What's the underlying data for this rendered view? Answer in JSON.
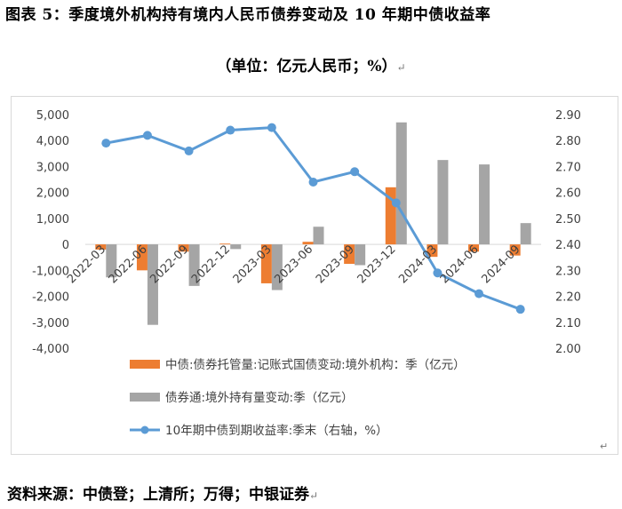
{
  "title": "图表 5：季度境外机构持有境内人民币债券变动及 10 年期中债收益率",
  "subtitle": "（单位：亿元人民币；%）",
  "subtitle_mark": "↵",
  "legend_mark": "↵",
  "source": "资料来源：中债登；上清所；万得；中银证券",
  "source_mark": "↵",
  "colors": {
    "orange": "#ED7D31",
    "gray": "#A5A5A5",
    "blue": "#5B9BD5"
  },
  "chart_data": {
    "type": "bar",
    "categories": [
      "2022-03",
      "2022-06",
      "2022-09",
      "2022-12",
      "2023-03",
      "2023-06",
      "2023-09",
      "2023-12",
      "2024-03",
      "2024-06",
      "2024-09"
    ],
    "series": [
      {
        "name": "中债:债券托管量:记账式国债变动:境外机构：季（亿元）",
        "type": "bar",
        "axis": "left",
        "values": [
          -200,
          -1000,
          -280,
          30,
          -1500,
          100,
          -750,
          2200,
          -480,
          -280,
          -430
        ]
      },
      {
        "name": "债券通:境外持有量变动:季（亿元）",
        "type": "bar",
        "axis": "left",
        "values": [
          -1270,
          -3100,
          -1600,
          -180,
          -1760,
          680,
          -800,
          4700,
          3250,
          3080,
          820
        ]
      },
      {
        "name": "10年期中债到期收益率:季末（右轴，%）",
        "type": "line",
        "axis": "right",
        "values": [
          2.79,
          2.82,
          2.76,
          2.84,
          2.85,
          2.64,
          2.68,
          2.56,
          2.29,
          2.21,
          2.15
        ]
      }
    ],
    "y_left": {
      "range": [
        -4000,
        5000
      ],
      "ticks": [
        "-4,000",
        "-3,000",
        "-2,000",
        "-1,000",
        "0",
        "1,000",
        "2,000",
        "3,000",
        "4,000",
        "5,000"
      ]
    },
    "y_right": {
      "range": [
        2.0,
        2.9
      ],
      "ticks": [
        "2.00",
        "2.10",
        "2.20",
        "2.30",
        "2.40",
        "2.50",
        "2.60",
        "2.70",
        "2.80",
        "2.90"
      ]
    },
    "legend_position": "bottom"
  }
}
